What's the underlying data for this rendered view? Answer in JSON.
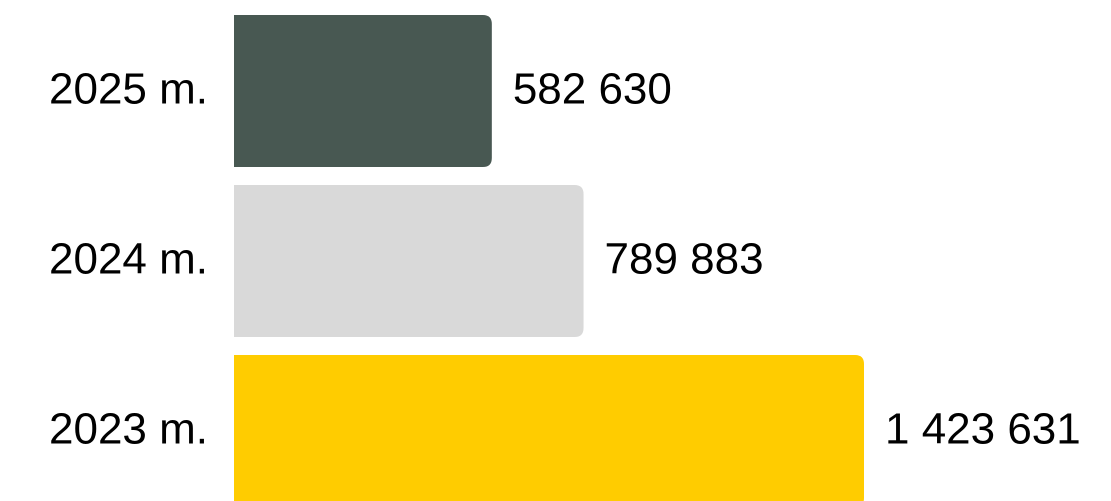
{
  "chart_data": {
    "type": "bar",
    "orientation": "horizontal",
    "categories": [
      "2025 m.",
      "2024 m.",
      "2023 m."
    ],
    "values": [
      582630,
      789883,
      1423631
    ],
    "value_labels": [
      "582 630",
      "789 883",
      "1 423 631"
    ],
    "colors": [
      "#485852",
      "#d9d9d9",
      "#ffcc00"
    ]
  }
}
